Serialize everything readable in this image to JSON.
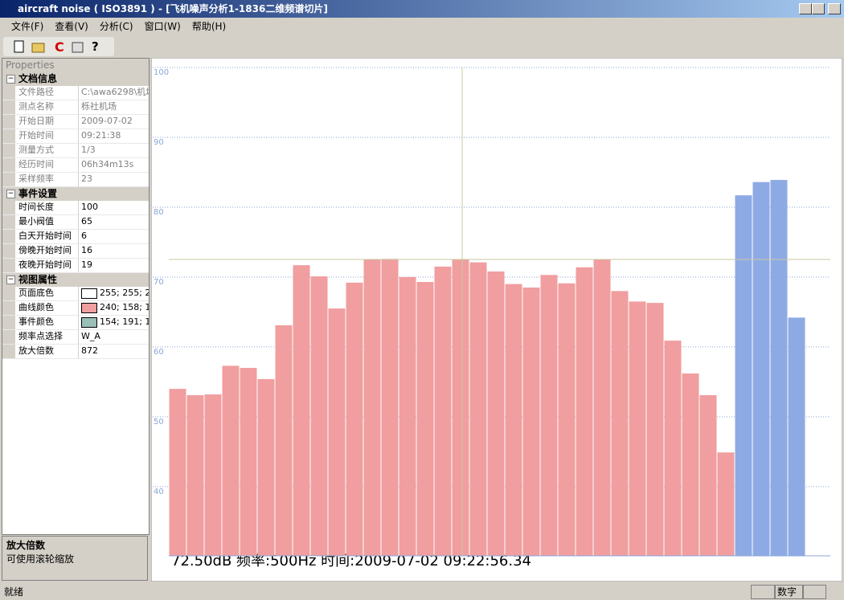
{
  "window": {
    "title": "aircraft noise ( ISO3891 ) - [飞机噪声分析1-1836二维频谱切片]"
  },
  "menu": [
    "文件(F)",
    "查看(V)",
    "分析(C)",
    "窗口(W)",
    "帮助(H)"
  ],
  "properties": {
    "header": "Properties",
    "sections": [
      {
        "title": "文档信息",
        "rows": [
          [
            "文件路径",
            "C:\\awa6298\\机场"
          ],
          [
            "测点名称",
            "栎社机场"
          ],
          [
            "开始日期",
            "2009-07-02"
          ],
          [
            "开始时间",
            "09:21:38"
          ],
          [
            "测量方式",
            "1/3"
          ],
          [
            "经历时间",
            "06h34m13s"
          ],
          [
            "采样频率",
            "23"
          ]
        ]
      },
      {
        "title": "事件设置",
        "rows": [
          [
            "时间长度",
            "100"
          ],
          [
            "最小阀值",
            "65"
          ],
          [
            "白天开始时间",
            "6"
          ],
          [
            "傍晚开始时间",
            "16"
          ],
          [
            "夜晚开始时间",
            "19"
          ]
        ]
      },
      {
        "title": "视图属性",
        "rows": [
          [
            "页面底色",
            "255; 255; 25"
          ],
          [
            "曲线颜色",
            "240; 158; 15"
          ],
          [
            "事件颜色",
            "154; 191; 18"
          ],
          [
            "频率点选择",
            "W_A"
          ],
          [
            "放大倍数",
            "872"
          ]
        ]
      }
    ],
    "description": {
      "title": "放大倍数",
      "text": "可使用滚轮缩放"
    }
  },
  "status": {
    "left": "就绪",
    "num": "数字"
  },
  "chart_data": {
    "type": "bar",
    "readout": "72.50dB  频率:500Hz  时间:2009-07-02 09:22:56.34",
    "values": [
      54.0,
      53.1,
      53.2,
      57.3,
      57.0,
      55.4,
      63.1,
      71.7,
      70.1,
      65.5,
      69.2,
      72.5,
      72.6,
      70.0,
      69.3,
      71.5,
      72.5,
      72.1,
      70.8,
      69.0,
      68.5,
      70.3,
      69.1,
      71.4,
      72.5,
      68.0,
      66.5,
      66.3,
      60.9,
      56.2,
      53.1,
      44.9,
      81.7,
      83.6,
      83.9,
      64.2
    ],
    "colors": [
      "#f09e9f",
      "#f09e9f",
      "#f09e9f",
      "#f09e9f",
      "#f09e9f",
      "#f09e9f",
      "#f09e9f",
      "#f09e9f",
      "#f09e9f",
      "#f09e9f",
      "#f09e9f",
      "#f09e9f",
      "#f09e9f",
      "#f09e9f",
      "#f09e9f",
      "#f09e9f",
      "#f09e9f",
      "#f09e9f",
      "#f09e9f",
      "#f09e9f",
      "#f09e9f",
      "#f09e9f",
      "#f09e9f",
      "#f09e9f",
      "#f09e9f",
      "#f09e9f",
      "#f09e9f",
      "#f09e9f",
      "#f09e9f",
      "#f09e9f",
      "#f09e9f",
      "#f09e9f",
      "#8eaae4",
      "#8eaae4",
      "#8eaae4",
      "#8eaae4"
    ],
    "ylim": [
      30.1,
      100
    ],
    "yticks": [
      40,
      50,
      60,
      70,
      80,
      90,
      100
    ],
    "grid": true
  }
}
